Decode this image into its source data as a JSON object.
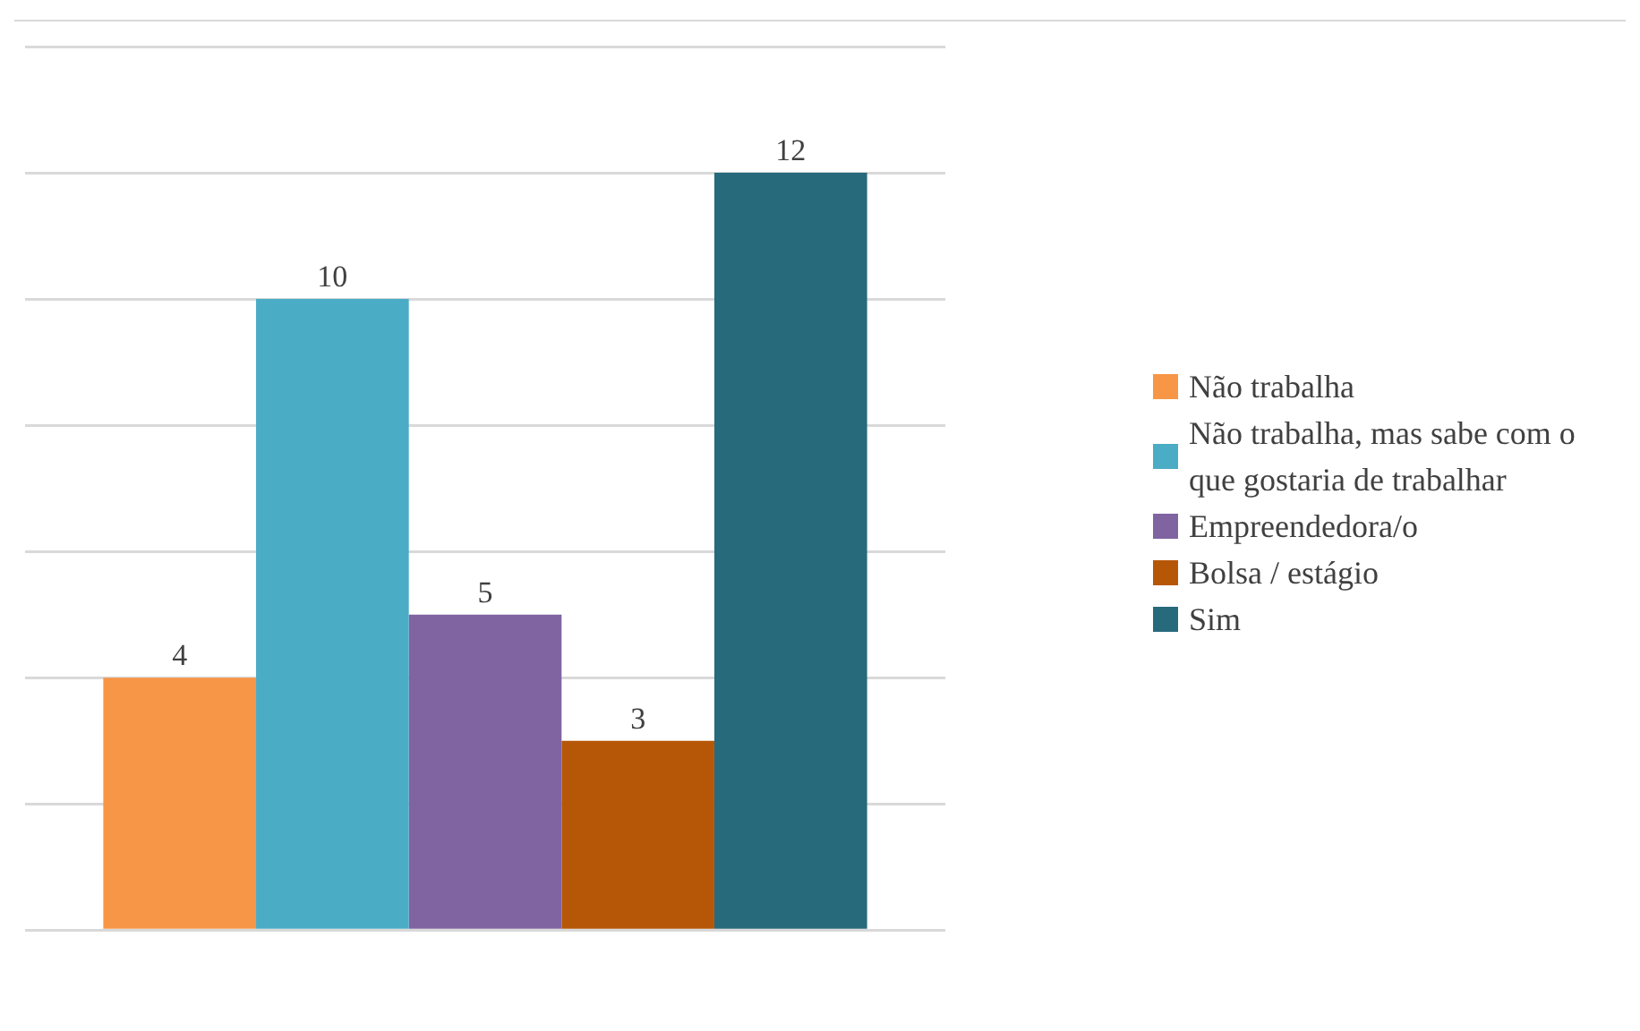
{
  "chart_data": {
    "type": "bar",
    "categories": [
      null
    ],
    "series": [
      {
        "name": "Não trabalha",
        "color": "#f79646",
        "values": [
          4
        ]
      },
      {
        "name": "Não trabalha, mas sabe com o que gostaria de trabalhar",
        "color": "#4bacc6",
        "values": [
          10
        ]
      },
      {
        "name": "Empreendedora/o",
        "color": "#8064a2",
        "values": [
          5
        ]
      },
      {
        "name": "Bolsa / estágio",
        "color": "#b65708",
        "values": [
          3
        ]
      },
      {
        "name": "Sim",
        "color": "#276a7c",
        "values": [
          12
        ]
      }
    ],
    "ylim": [
      0,
      14
    ],
    "yticks": [
      {
        "value": 0,
        "label": null
      },
      {
        "value": 2,
        "label": null
      },
      {
        "value": 4,
        "label": null
      },
      {
        "value": 6,
        "label": null
      },
      {
        "value": 8,
        "label": null
      },
      {
        "value": 10,
        "label": null
      },
      {
        "value": 12,
        "label": null
      },
      {
        "value": 14,
        "label": null
      }
    ],
    "grid": "y",
    "legend": "right",
    "data_labels": true
  }
}
